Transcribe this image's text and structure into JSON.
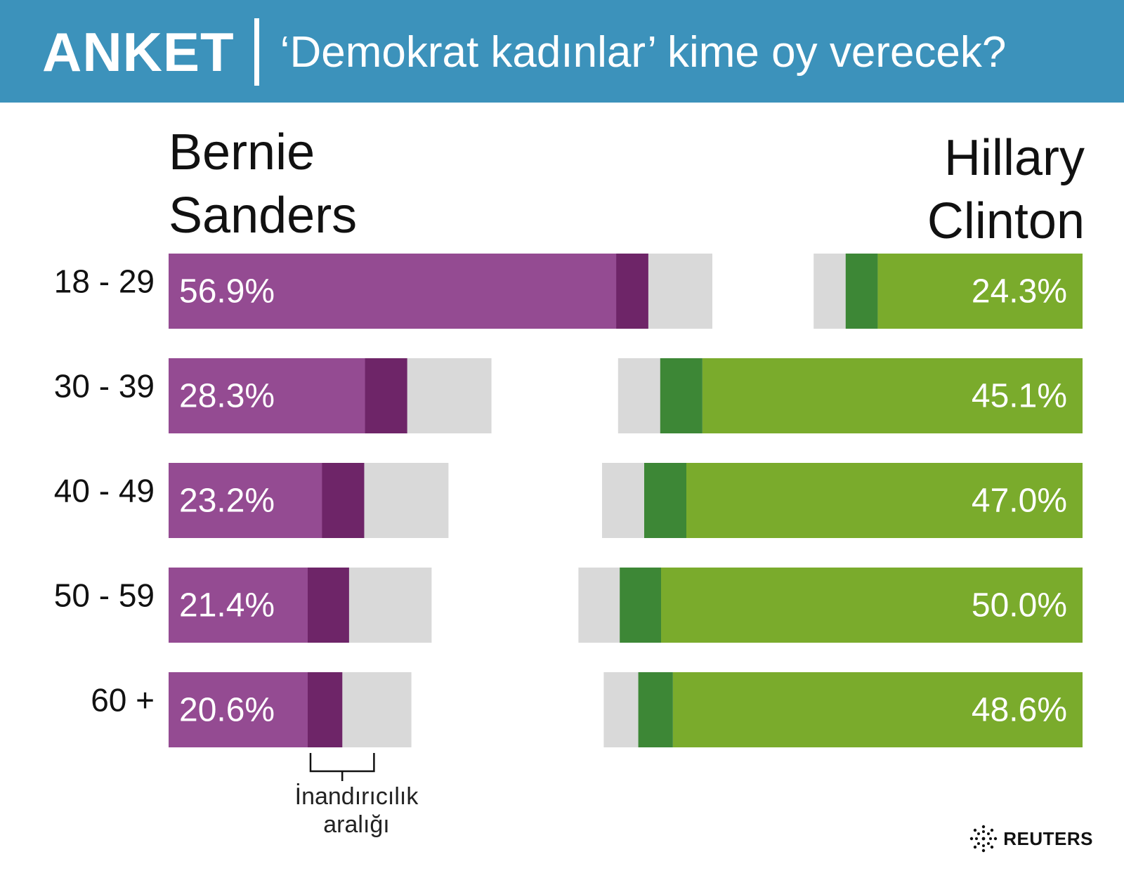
{
  "header": {
    "label": "ANKET",
    "title": "‘Demokrat kadınlar’ kime oy verecek?",
    "background": "#3c92bb"
  },
  "candidates": {
    "left": {
      "line1": "Bernie",
      "line2": "Sanders"
    },
    "right": {
      "line1": "Hillary",
      "line2": "Clinton"
    }
  },
  "chart_data": {
    "type": "bar",
    "categories": [
      "18 - 29",
      "30 - 39",
      "40 -  49",
      "50 - 59",
      "60 +"
    ],
    "series": [
      {
        "name": "Bernie Sanders",
        "values": [
          56.9,
          28.3,
          23.2,
          21.4,
          20.6
        ],
        "labels": [
          "56.9%",
          "28.3%",
          "23.2%",
          "21.4%",
          "20.6%"
        ],
        "interval": [
          3.8,
          5.0,
          5.0,
          4.9,
          4.1
        ],
        "color": "#944b92",
        "interval_color": "#6e2568"
      },
      {
        "name": "Hillary Clinton",
        "values": [
          24.3,
          45.1,
          47.0,
          50.0,
          48.6
        ],
        "labels": [
          "24.3%",
          "45.1%",
          "47.0%",
          "50.0%",
          "48.6%"
        ],
        "interval": [
          3.8,
          5.0,
          5.0,
          4.9,
          4.1
        ],
        "color": "#7aab2c",
        "interval_color": "#3d8736"
      }
    ],
    "interval_background_color": "#d9d9d9",
    "interval_label": [
      "İnandırıcılık",
      "aralığı"
    ]
  },
  "footer": {
    "logo_text": "REUTERS",
    "logo_icon": "reuters-dot-ring-icon"
  }
}
